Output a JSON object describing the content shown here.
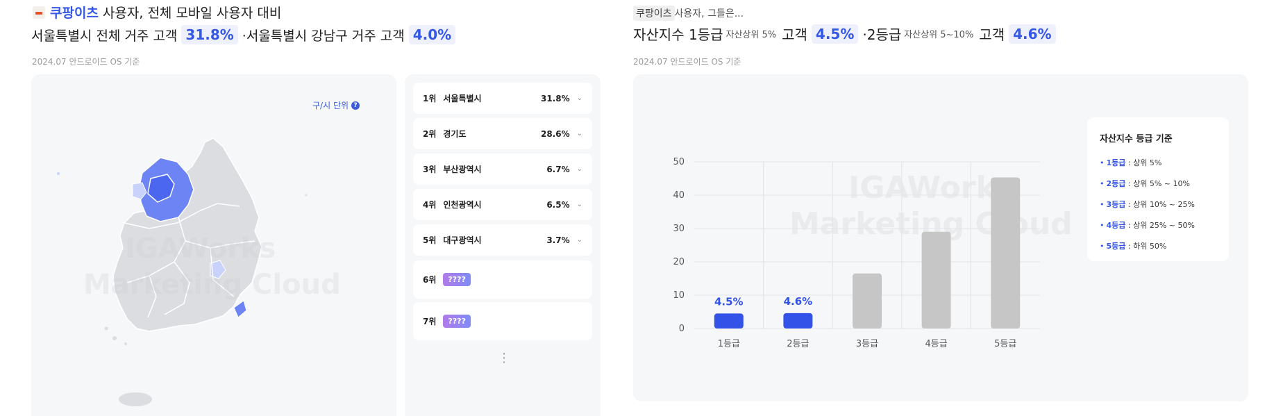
{
  "left": {
    "title_line1": {
      "brand": "쿠팡이츠",
      "rest": "사용자, 전체 모바일 사용자 대비"
    },
    "title_line2": {
      "part1": "서울특별시 전체 거주 고객",
      "value1": "31.8%",
      "part2": "·서울특별시 강남구 거주 고객",
      "value2": "4.0%"
    },
    "source": "2024.07 안드로이드 OS 기준",
    "unit_button": "구/시 단위",
    "unit_help": "?",
    "watermark_line1": "IGAWorks",
    "watermark_line2": "Marketing Cloud",
    "ranking": [
      {
        "rank": "1위",
        "name": "서울특별시",
        "value": "31.8%"
      },
      {
        "rank": "2위",
        "name": "경기도",
        "value": "28.6%"
      },
      {
        "rank": "3위",
        "name": "부산광역시",
        "value": "6.7%"
      },
      {
        "rank": "4위",
        "name": "인천광역시",
        "value": "6.5%"
      },
      {
        "rank": "5위",
        "name": "대구광역시",
        "value": "3.7%"
      },
      {
        "rank": "6위",
        "locked": "????"
      },
      {
        "rank": "7위",
        "locked": "????"
      }
    ],
    "more": "⋮",
    "colors": {
      "seoul": "#4b67f0",
      "gyeonggi": "#6d84f5",
      "light": "#c9d2fa",
      "land": "#dcdde1"
    }
  },
  "right": {
    "tag": "쿠팡이츠",
    "subtitle_rest": "사용자, 그들은...",
    "headline": {
      "g1": "자산지수 1등급",
      "g1_note": "자산상위 5%",
      "g1_label": "고객",
      "g1_value": "4.5%",
      "g2": "·2등급",
      "g2_note": "자산상위 5~10%",
      "g2_label": "고객",
      "g2_value": "4.6%"
    },
    "source": "2024.07 안드로이드 OS 기준",
    "watermark_line1": "IGAWorks",
    "watermark_line2": "Marketing Cloud",
    "legend": {
      "title": "자산지수 등급 기준",
      "items": [
        {
          "grade": "1등급",
          "desc": " : 상위 5%"
        },
        {
          "grade": "2등급",
          "desc": " : 상위 5% ~ 10%"
        },
        {
          "grade": "3등급",
          "desc": " : 상위 10% ~ 25%"
        },
        {
          "grade": "4등급",
          "desc": " : 상위 25% ~ 50%"
        },
        {
          "grade": "5등급",
          "desc": " : 하위 50%"
        }
      ]
    }
  },
  "chart_data": {
    "type": "bar",
    "categories": [
      "1등급",
      "2등급",
      "3등급",
      "4등급",
      "5등급"
    ],
    "values": [
      4.5,
      4.6,
      16.5,
      29.0,
      45.3
    ],
    "data_labels": [
      "4.5%",
      "4.6%",
      "",
      "",
      ""
    ],
    "highlight": [
      true,
      true,
      false,
      false,
      false
    ],
    "ylim": [
      0,
      50
    ],
    "yticks": [
      0,
      10,
      20,
      30,
      40,
      50
    ],
    "grid": true,
    "colors": {
      "highlight": "#3353e8",
      "default": "#c6c6c6",
      "label": "#3353e8"
    },
    "title": "",
    "xlabel": "",
    "ylabel": ""
  }
}
